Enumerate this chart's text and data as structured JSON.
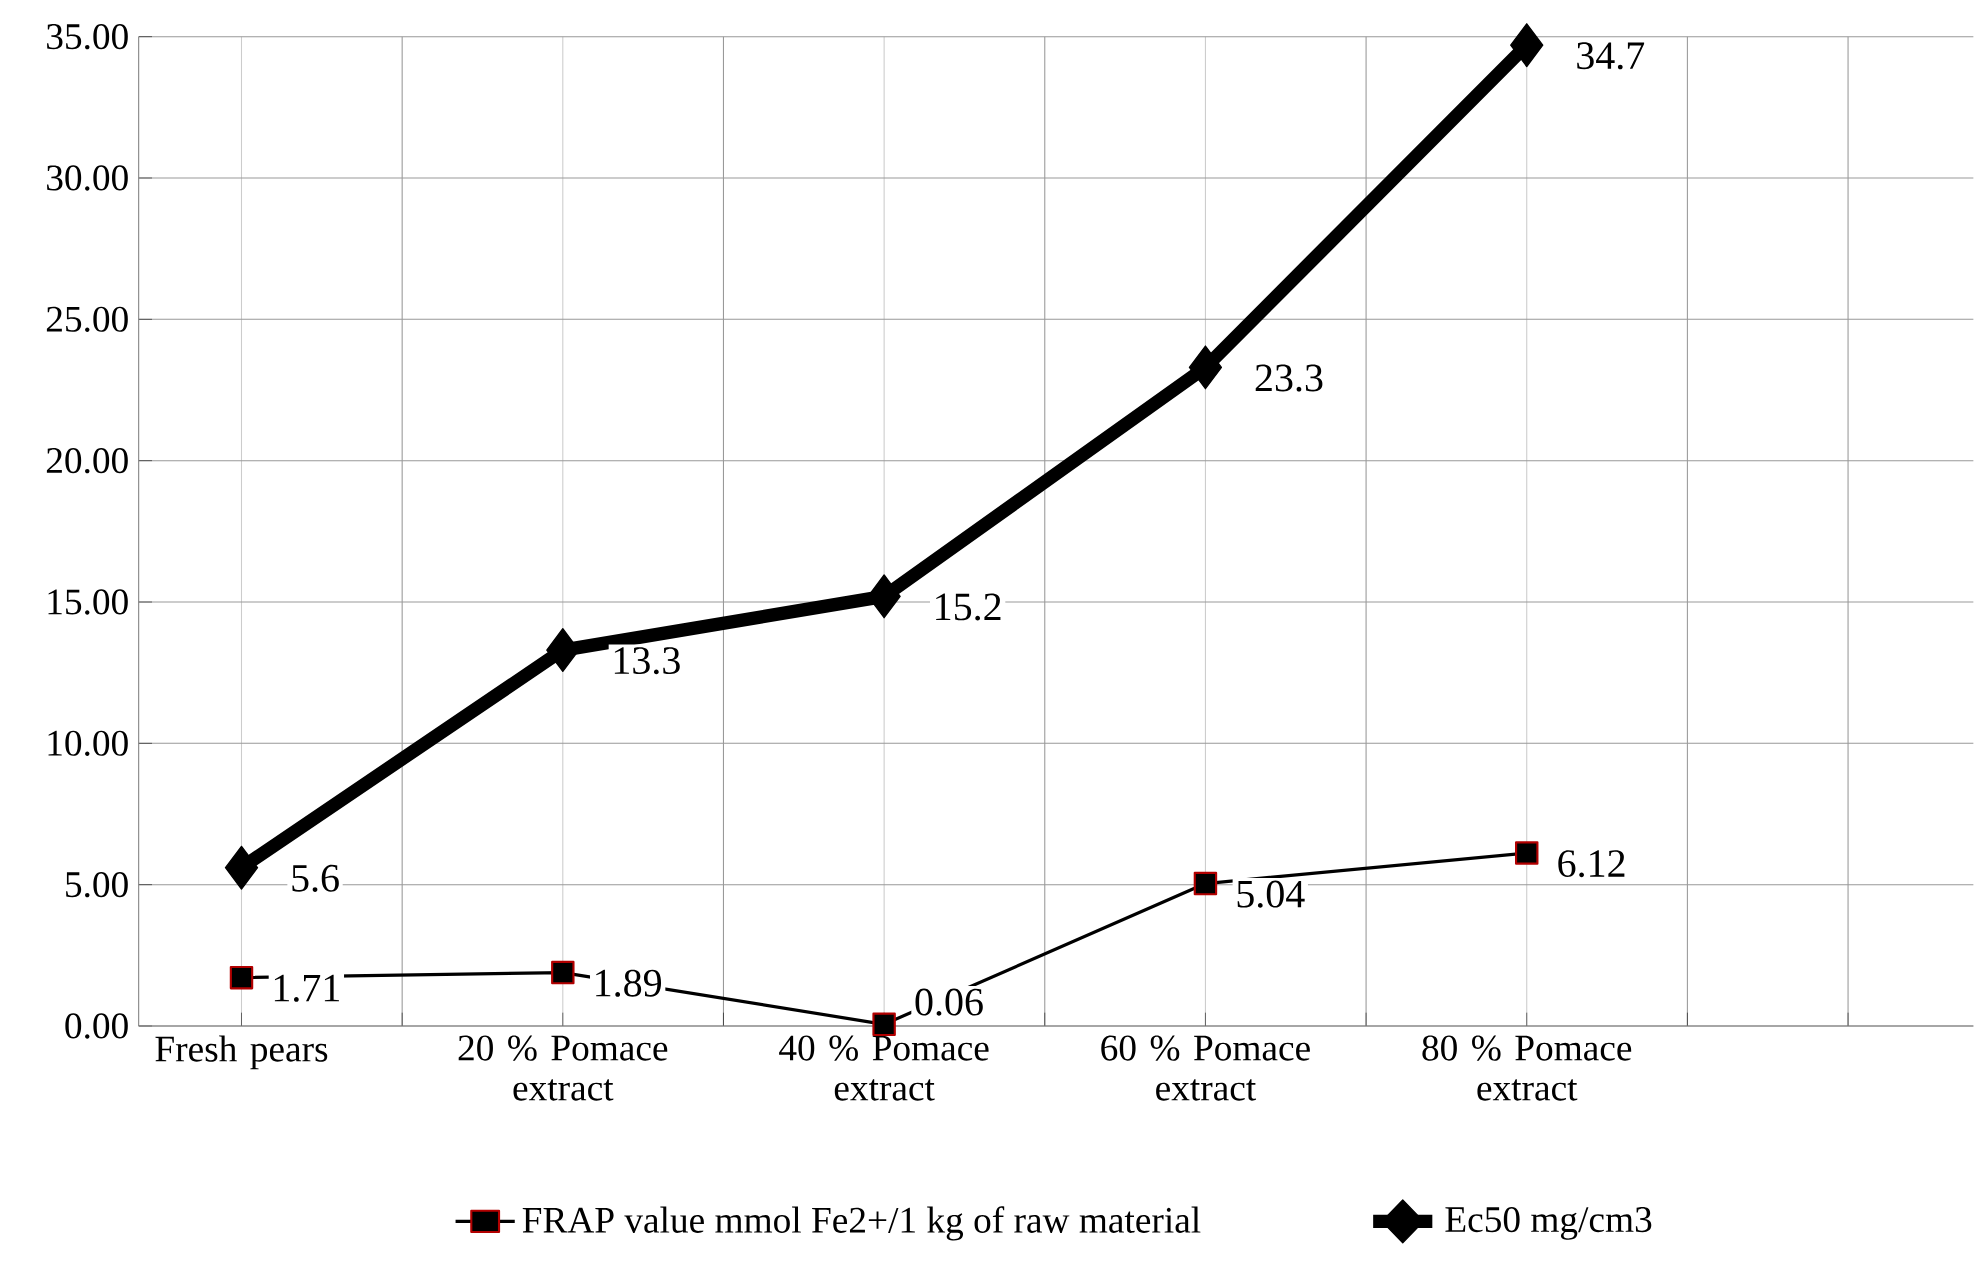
{
  "chart_data": {
    "type": "line",
    "categories": [
      "Fresh pears",
      "20 % Pomace extract",
      "40 % Pomace extract",
      "60 % Pomace extract",
      "80 % Pomace extract"
    ],
    "series": [
      {
        "name": "FRAP value mmol Fe2+/1 kg of raw material",
        "color": "#000000",
        "marker": "square",
        "values": [
          1.71,
          1.89,
          0.06,
          5.04,
          6.12
        ]
      },
      {
        "name": "Ec50  mg/cm3",
        "color": "#000000",
        "marker": "diamond",
        "values": [
          5.6,
          13.3,
          15.2,
          23.3,
          34.7
        ]
      }
    ],
    "ylim": [
      0,
      35
    ],
    "yticks": [
      {
        "value": 0,
        "label": "0.00"
      },
      {
        "value": 5,
        "label": "5.00"
      },
      {
        "value": 10,
        "label": "10.00"
      },
      {
        "value": 15,
        "label": "15.00"
      },
      {
        "value": 20,
        "label": "20.00"
      },
      {
        "value": 25,
        "label": "25.00"
      },
      {
        "value": 30,
        "label": "30.00"
      },
      {
        "value": 35,
        "label": "35.00"
      }
    ],
    "grid": true,
    "legend": "bottom",
    "data_labels": true
  }
}
